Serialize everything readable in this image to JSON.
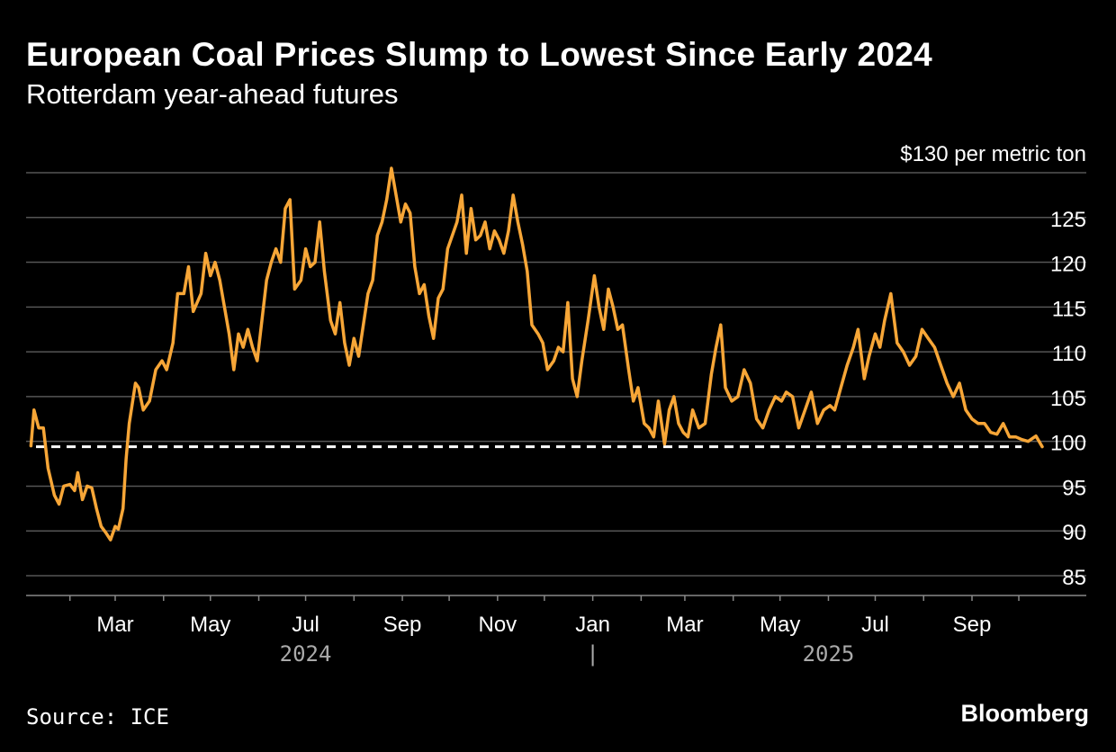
{
  "header": {
    "title": "European Coal Prices Slump to Lowest Since Early 2024",
    "subtitle": "Rotterdam year-ahead futures"
  },
  "footer": {
    "source": "Source: ICE",
    "brand": "Bloomberg"
  },
  "colors": {
    "line": "#f7a637",
    "reference": "#ffffff",
    "grid": "#555555",
    "background": "#000000"
  },
  "chart_data": {
    "type": "line",
    "title": "European Coal Prices Slump to Lowest Since Early 2024",
    "subtitle": "Rotterdam year-ahead futures",
    "y_unit_label": "$130 per metric ton",
    "ylim": [
      83,
      132
    ],
    "y_ticks": [
      85,
      90,
      95,
      100,
      105,
      110,
      115,
      120,
      125,
      130
    ],
    "y_tick_labels": [
      "85",
      "90",
      "95",
      "100",
      "105",
      "110",
      "115",
      "120",
      "125",
      "$130 per metric ton"
    ],
    "x_range": [
      "2024-01-02",
      "2025-10-20"
    ],
    "x_ticks": [
      {
        "date": "2024-03-01",
        "label": "Mar"
      },
      {
        "date": "2024-05-01",
        "label": "May"
      },
      {
        "date": "2024-07-01",
        "label": "Jul"
      },
      {
        "date": "2024-09-01",
        "label": "Sep"
      },
      {
        "date": "2024-11-01",
        "label": "Nov"
      },
      {
        "date": "2025-01-01",
        "label": "Jan"
      },
      {
        "date": "2025-03-01",
        "label": "Mar"
      },
      {
        "date": "2025-05-01",
        "label": "May"
      },
      {
        "date": "2025-07-01",
        "label": "Jul"
      },
      {
        "date": "2025-09-01",
        "label": "Sep"
      }
    ],
    "year_labels": [
      {
        "date": "2024-07-01",
        "label": "2024"
      },
      {
        "date": "2025-01-01",
        "label": "|"
      },
      {
        "date": "2025-06-01",
        "label": "2025"
      }
    ],
    "reference_line": {
      "value": 99.4,
      "style": "dashed"
    },
    "grid": true,
    "series": [
      {
        "values": [
          [
            "2024-01-07",
            99.5
          ],
          [
            "2024-01-09",
            103.5
          ],
          [
            "2024-01-12",
            101.5
          ],
          [
            "2024-01-15",
            101.5
          ],
          [
            "2024-01-18",
            97
          ],
          [
            "2024-01-22",
            94
          ],
          [
            "2024-01-25",
            93
          ],
          [
            "2024-01-28",
            95
          ],
          [
            "2024-02-01",
            95.2
          ],
          [
            "2024-02-04",
            94.5
          ],
          [
            "2024-02-06",
            96.5
          ],
          [
            "2024-02-09",
            93.5
          ],
          [
            "2024-02-12",
            95
          ],
          [
            "2024-02-15",
            94.8
          ],
          [
            "2024-02-18",
            92.5
          ],
          [
            "2024-02-21",
            90.5
          ],
          [
            "2024-02-24",
            89.8
          ],
          [
            "2024-02-27",
            89
          ],
          [
            "2024-03-01",
            90.5
          ],
          [
            "2024-03-03",
            90.2
          ],
          [
            "2024-03-06",
            92.5
          ],
          [
            "2024-03-08",
            98
          ],
          [
            "2024-03-10",
            102
          ],
          [
            "2024-03-14",
            106.5
          ],
          [
            "2024-03-16",
            106
          ],
          [
            "2024-03-19",
            103.5
          ],
          [
            "2024-03-23",
            104.5
          ],
          [
            "2024-03-27",
            108
          ],
          [
            "2024-03-31",
            109
          ],
          [
            "2024-04-03",
            108
          ],
          [
            "2024-04-07",
            111
          ],
          [
            "2024-04-10",
            116.5
          ],
          [
            "2024-04-14",
            116.5
          ],
          [
            "2024-04-17",
            119.5
          ],
          [
            "2024-04-20",
            114.5
          ],
          [
            "2024-04-25",
            116.5
          ],
          [
            "2024-04-28",
            121
          ],
          [
            "2024-05-01",
            118.5
          ],
          [
            "2024-05-04",
            120
          ],
          [
            "2024-05-07",
            118
          ],
          [
            "2024-05-10",
            115
          ],
          [
            "2024-05-13",
            112
          ],
          [
            "2024-05-16",
            108
          ],
          [
            "2024-05-19",
            112
          ],
          [
            "2024-05-22",
            110.5
          ],
          [
            "2024-05-25",
            112.5
          ],
          [
            "2024-05-28",
            110.5
          ],
          [
            "2024-05-31",
            109
          ],
          [
            "2024-06-03",
            113.5
          ],
          [
            "2024-06-06",
            118
          ],
          [
            "2024-06-09",
            120
          ],
          [
            "2024-06-12",
            121.5
          ],
          [
            "2024-06-15",
            120
          ],
          [
            "2024-06-18",
            126
          ],
          [
            "2024-06-21",
            127
          ],
          [
            "2024-06-24",
            117
          ],
          [
            "2024-06-28",
            118
          ],
          [
            "2024-07-01",
            121.5
          ],
          [
            "2024-07-04",
            119.5
          ],
          [
            "2024-07-07",
            120
          ],
          [
            "2024-07-10",
            124.5
          ],
          [
            "2024-07-13",
            119
          ],
          [
            "2024-07-17",
            113.5
          ],
          [
            "2024-07-20",
            112
          ],
          [
            "2024-07-23",
            115.5
          ],
          [
            "2024-07-26",
            111
          ],
          [
            "2024-07-29",
            108.5
          ],
          [
            "2024-08-01",
            111.5
          ],
          [
            "2024-08-04",
            109.5
          ],
          [
            "2024-08-07",
            113
          ],
          [
            "2024-08-10",
            116.5
          ],
          [
            "2024-08-13",
            118
          ],
          [
            "2024-08-16",
            123
          ],
          [
            "2024-08-19",
            124.5
          ],
          [
            "2024-08-22",
            127
          ],
          [
            "2024-08-25",
            130.5
          ],
          [
            "2024-08-28",
            127.5
          ],
          [
            "2024-08-31",
            124.5
          ],
          [
            "2024-09-03",
            126.5
          ],
          [
            "2024-09-06",
            125.5
          ],
          [
            "2024-09-09",
            119.5
          ],
          [
            "2024-09-12",
            116.5
          ],
          [
            "2024-09-15",
            117.5
          ],
          [
            "2024-09-18",
            114
          ],
          [
            "2024-09-21",
            111.5
          ],
          [
            "2024-09-24",
            116
          ],
          [
            "2024-09-27",
            117
          ],
          [
            "2024-09-30",
            121.5
          ],
          [
            "2024-10-03",
            123
          ],
          [
            "2024-10-06",
            124.5
          ],
          [
            "2024-10-09",
            127.5
          ],
          [
            "2024-10-12",
            121
          ],
          [
            "2024-10-15",
            126
          ],
          [
            "2024-10-18",
            122.5
          ],
          [
            "2024-10-21",
            123
          ],
          [
            "2024-10-24",
            124.5
          ],
          [
            "2024-10-27",
            121.5
          ],
          [
            "2024-10-30",
            123.5
          ],
          [
            "2024-11-02",
            122.5
          ],
          [
            "2024-11-05",
            121
          ],
          [
            "2024-11-08",
            123.5
          ],
          [
            "2024-11-11",
            127.5
          ],
          [
            "2024-11-14",
            124.5
          ],
          [
            "2024-11-17",
            122
          ],
          [
            "2024-11-20",
            119
          ],
          [
            "2024-11-23",
            113
          ],
          [
            "2024-11-27",
            112
          ],
          [
            "2024-11-30",
            111
          ],
          [
            "2024-12-03",
            108
          ],
          [
            "2024-12-07",
            109
          ],
          [
            "2024-12-10",
            110.5
          ],
          [
            "2024-12-13",
            110
          ],
          [
            "2024-12-16",
            115.5
          ],
          [
            "2024-12-19",
            107
          ],
          [
            "2024-12-22",
            105
          ],
          [
            "2024-12-25",
            109
          ],
          [
            "2024-12-29",
            113.5
          ],
          [
            "2025-01-02",
            118.5
          ],
          [
            "2025-01-05",
            115
          ],
          [
            "2025-01-08",
            112.5
          ],
          [
            "2025-01-11",
            117
          ],
          [
            "2025-01-14",
            115
          ],
          [
            "2025-01-17",
            112.5
          ],
          [
            "2025-01-20",
            113
          ],
          [
            "2025-01-24",
            108
          ],
          [
            "2025-01-27",
            104.5
          ],
          [
            "2025-01-30",
            106
          ],
          [
            "2025-02-03",
            102
          ],
          [
            "2025-02-06",
            101.5
          ],
          [
            "2025-02-09",
            100.5
          ],
          [
            "2025-02-12",
            104.5
          ],
          [
            "2025-02-16",
            99.7
          ],
          [
            "2025-02-19",
            103.5
          ],
          [
            "2025-02-22",
            105
          ],
          [
            "2025-02-25",
            102
          ],
          [
            "2025-02-28",
            101
          ],
          [
            "2025-03-03",
            100.5
          ],
          [
            "2025-03-06",
            103.5
          ],
          [
            "2025-03-10",
            101.5
          ],
          [
            "2025-03-14",
            102
          ],
          [
            "2025-03-18",
            107.5
          ],
          [
            "2025-03-21",
            110.5
          ],
          [
            "2025-03-24",
            113
          ],
          [
            "2025-03-27",
            106
          ],
          [
            "2025-03-31",
            104.5
          ],
          [
            "2025-04-04",
            105
          ],
          [
            "2025-04-08",
            108
          ],
          [
            "2025-04-12",
            106.5
          ],
          [
            "2025-04-16",
            102.5
          ],
          [
            "2025-04-20",
            101.5
          ],
          [
            "2025-04-24",
            103.5
          ],
          [
            "2025-04-28",
            105
          ],
          [
            "2025-05-02",
            104.5
          ],
          [
            "2025-05-05",
            105.5
          ],
          [
            "2025-05-09",
            105
          ],
          [
            "2025-05-13",
            101.5
          ],
          [
            "2025-05-17",
            103.5
          ],
          [
            "2025-05-21",
            105.5
          ],
          [
            "2025-05-25",
            102
          ],
          [
            "2025-05-29",
            103.5
          ],
          [
            "2025-06-02",
            104
          ],
          [
            "2025-06-05",
            103.5
          ],
          [
            "2025-06-09",
            106
          ],
          [
            "2025-06-13",
            108.5
          ],
          [
            "2025-06-17",
            110.5
          ],
          [
            "2025-06-20",
            112.5
          ],
          [
            "2025-06-24",
            107
          ],
          [
            "2025-06-27",
            109.5
          ],
          [
            "2025-07-01",
            112
          ],
          [
            "2025-07-04",
            110.5
          ],
          [
            "2025-07-07",
            113.5
          ],
          [
            "2025-07-11",
            116.5
          ],
          [
            "2025-07-15",
            111
          ],
          [
            "2025-07-19",
            110
          ],
          [
            "2025-07-23",
            108.5
          ],
          [
            "2025-07-27",
            109.5
          ],
          [
            "2025-07-31",
            112.5
          ],
          [
            "2025-08-04",
            111.5
          ],
          [
            "2025-08-08",
            110.5
          ],
          [
            "2025-08-12",
            108.5
          ],
          [
            "2025-08-16",
            106.5
          ],
          [
            "2025-08-20",
            105
          ],
          [
            "2025-08-24",
            106.5
          ],
          [
            "2025-08-28",
            103.5
          ],
          [
            "2025-09-01",
            102.5
          ],
          [
            "2025-09-05",
            102
          ],
          [
            "2025-09-09",
            102
          ],
          [
            "2025-09-13",
            101
          ],
          [
            "2025-09-17",
            100.8
          ],
          [
            "2025-09-21",
            102
          ],
          [
            "2025-09-25",
            100.5
          ],
          [
            "2025-09-29",
            100.5
          ],
          [
            "2025-10-03",
            100.2
          ],
          [
            "2025-10-07",
            100
          ],
          [
            "2025-10-12",
            100.6
          ],
          [
            "2025-10-16",
            99.4
          ]
        ]
      }
    ]
  }
}
